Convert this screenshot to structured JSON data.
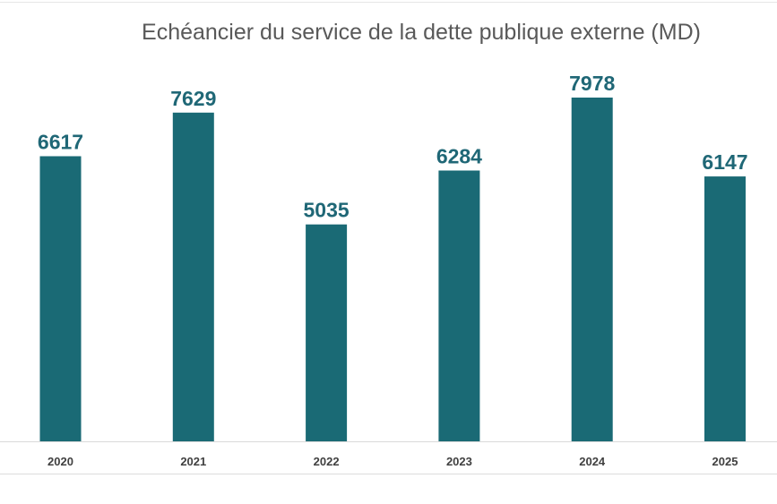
{
  "chart_data": {
    "type": "bar",
    "title": "Echéancier du service de la dette publique externe (MD)",
    "xlabel": "",
    "ylabel": "",
    "categories": [
      "2020",
      "2021",
      "2022",
      "2023",
      "2024",
      "2025"
    ],
    "values": [
      6617,
      7629,
      5035,
      6284,
      7978,
      6147
    ],
    "ylim": [
      0,
      8000
    ],
    "grid": false,
    "legend": "none",
    "bar_color": "#1a6a75",
    "data_label_color": "#1f6776"
  }
}
